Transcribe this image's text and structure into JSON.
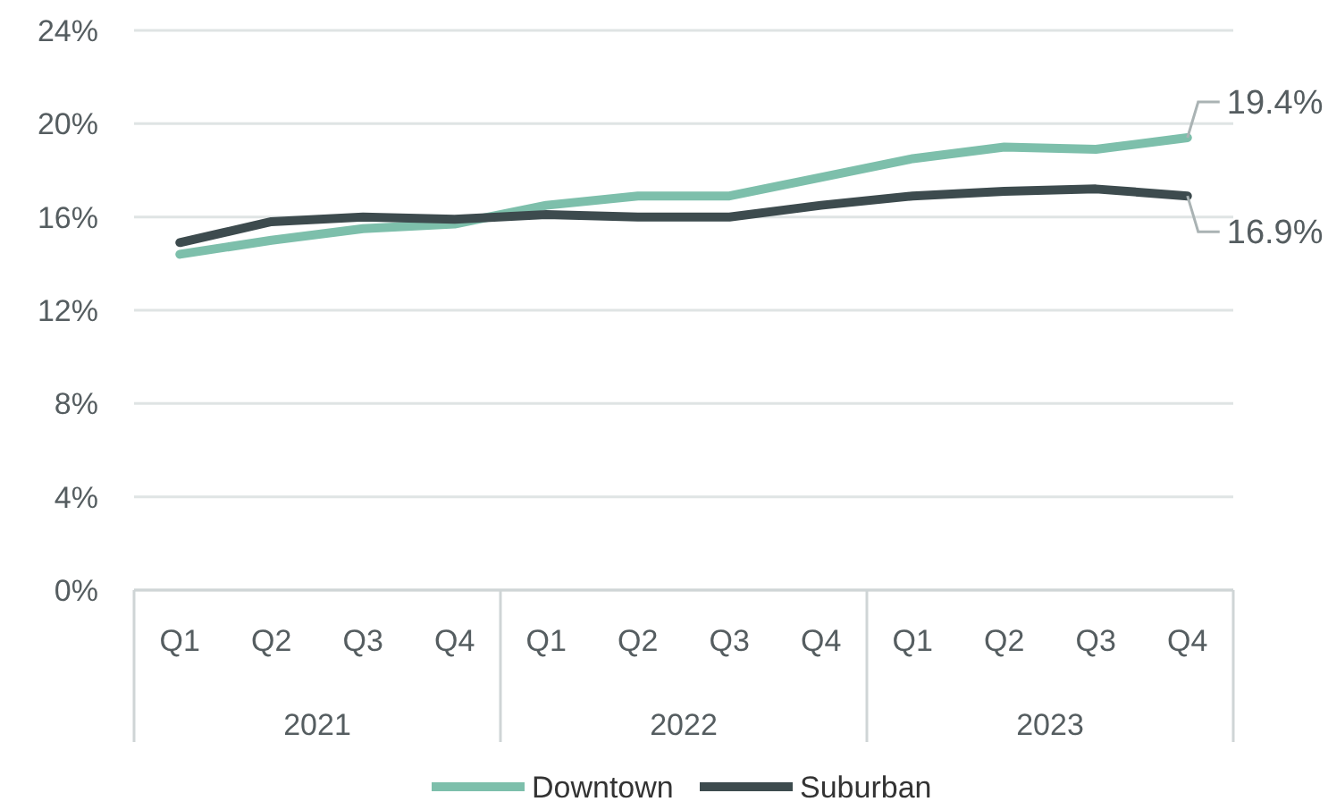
{
  "chart_data": {
    "type": "line",
    "categories": [
      "Q1",
      "Q2",
      "Q3",
      "Q4",
      "Q1",
      "Q2",
      "Q3",
      "Q4",
      "Q1",
      "Q2",
      "Q3",
      "Q4"
    ],
    "annotations": [
      "2021",
      "2022",
      "2023"
    ],
    "series": [
      {
        "name": "Downtown",
        "color": "#7dbfab",
        "values": [
          14.4,
          15.0,
          15.5,
          15.7,
          16.5,
          16.9,
          16.9,
          17.7,
          18.5,
          19.0,
          18.9,
          19.4
        ],
        "value_labels": [
          null,
          null,
          null,
          null,
          null,
          null,
          null,
          null,
          null,
          null,
          null,
          "19.4%"
        ]
      },
      {
        "name": "Suburban",
        "color": "#3d4b4e",
        "values": [
          14.9,
          15.8,
          16.0,
          15.9,
          16.1,
          16.0,
          16.0,
          16.5,
          16.9,
          17.1,
          17.2,
          16.9
        ],
        "value_labels": [
          null,
          null,
          null,
          null,
          null,
          null,
          null,
          null,
          null,
          null,
          null,
          "16.9%"
        ]
      }
    ],
    "ylim": [
      0,
      24
    ],
    "yticks": [
      {
        "value": 0,
        "label": "0%"
      },
      {
        "value": 4,
        "label": "4%"
      },
      {
        "value": 8,
        "label": "8%"
      },
      {
        "value": 12,
        "label": "12%"
      },
      {
        "value": 16,
        "label": "16%"
      },
      {
        "value": 20,
        "label": "20%"
      },
      {
        "value": 24,
        "label": "24%"
      }
    ],
    "grid": "y",
    "legend": "bottom",
    "marker": "none",
    "line_style": "solid"
  }
}
